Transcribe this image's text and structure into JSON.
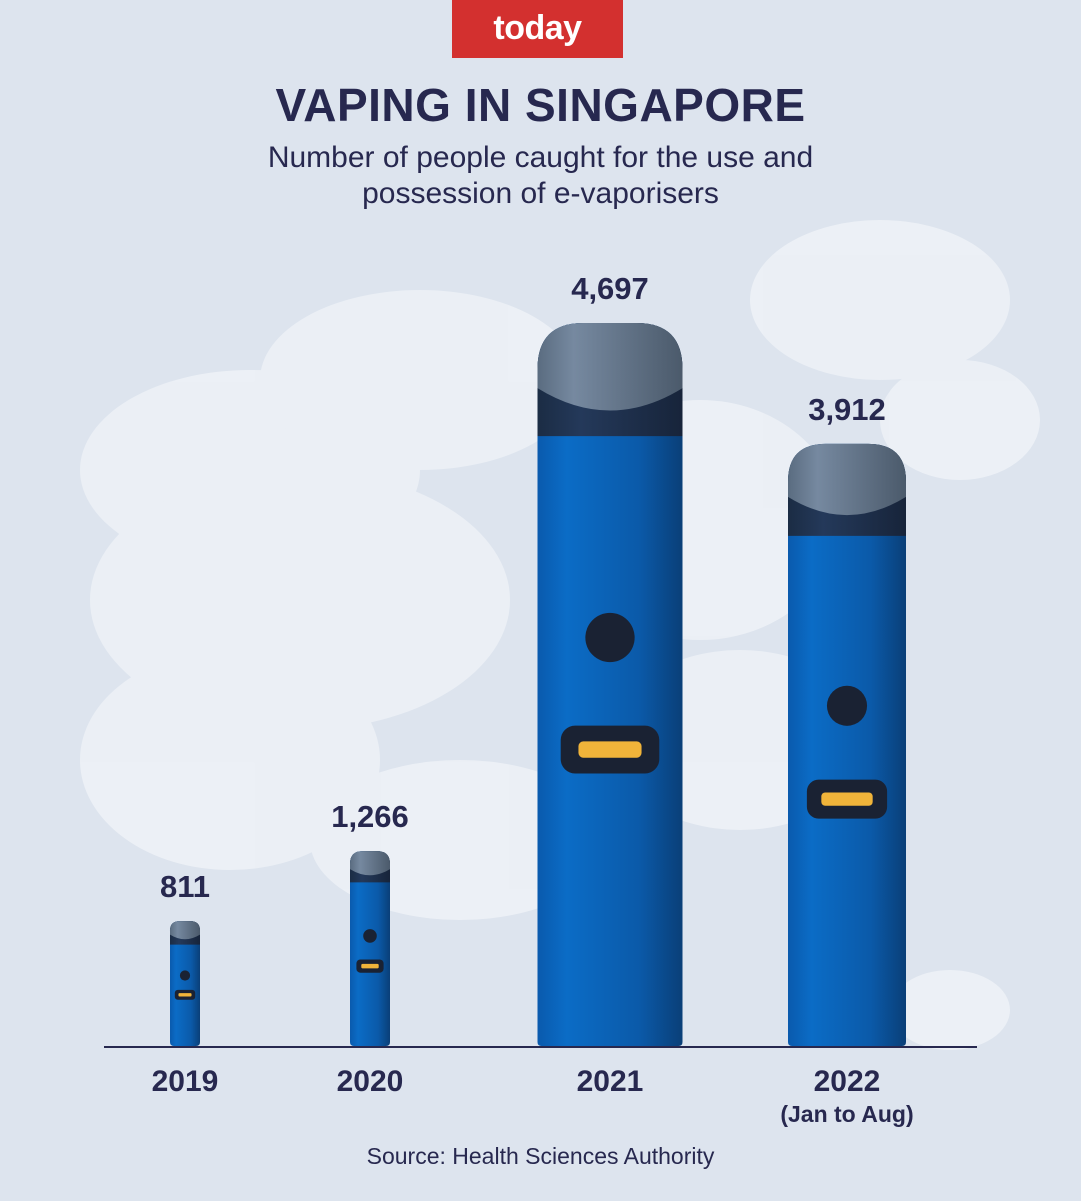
{
  "logo": "today",
  "chart_data": {
    "type": "bar",
    "title": "VAPING IN SINGAPORE",
    "subtitle_lines": [
      "Number of people caught for the use and",
      "possession of e-vaporisers"
    ],
    "categories": [
      "2019",
      "2020",
      "2021",
      "2022"
    ],
    "category_notes": [
      "",
      "",
      "",
      "(Jan to Aug)"
    ],
    "values": [
      811,
      1266,
      4697,
      3912
    ],
    "value_labels": [
      "811",
      "1,266",
      "4,697",
      "3,912"
    ],
    "ylim": [
      0,
      4697
    ],
    "grid": false,
    "xlabel": "",
    "ylabel": "",
    "colors": {
      "body": "#0a5fb4",
      "cap": "#5e7186",
      "band": "#1d2f48",
      "button": "#f0b43a",
      "text": "#27284f"
    }
  },
  "source": "Source: Health Sciences Authority"
}
